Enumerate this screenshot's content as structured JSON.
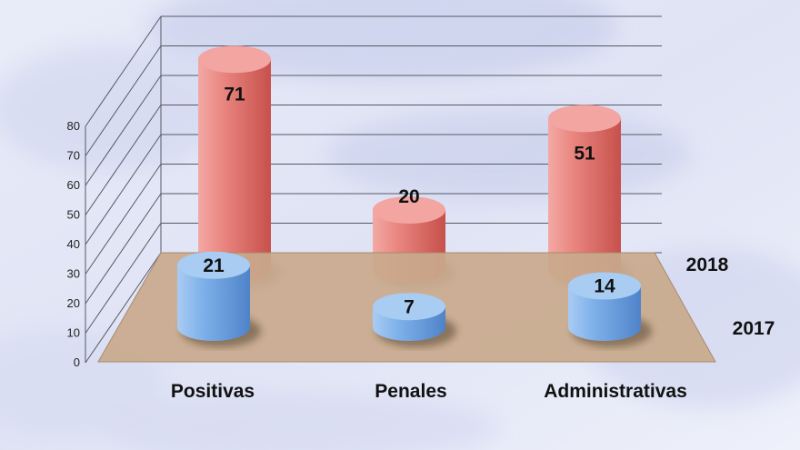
{
  "chart_data": {
    "type": "bar",
    "style": "3d-cylinder",
    "categories": [
      "Positivas",
      "Penales",
      "Administrativas"
    ],
    "series": [
      {
        "name": "2017",
        "values": [
          21,
          7,
          14
        ],
        "color": "#6fa6e2"
      },
      {
        "name": "2018",
        "values": [
          71,
          20,
          51
        ],
        "color": "#e57f7c"
      }
    ],
    "ylim": [
      0,
      80
    ],
    "yticks": [
      0,
      10,
      20,
      30,
      40,
      50,
      60,
      70,
      80
    ],
    "grid": true,
    "floor_color": "#c9a98c",
    "series_label_placement": "right"
  }
}
